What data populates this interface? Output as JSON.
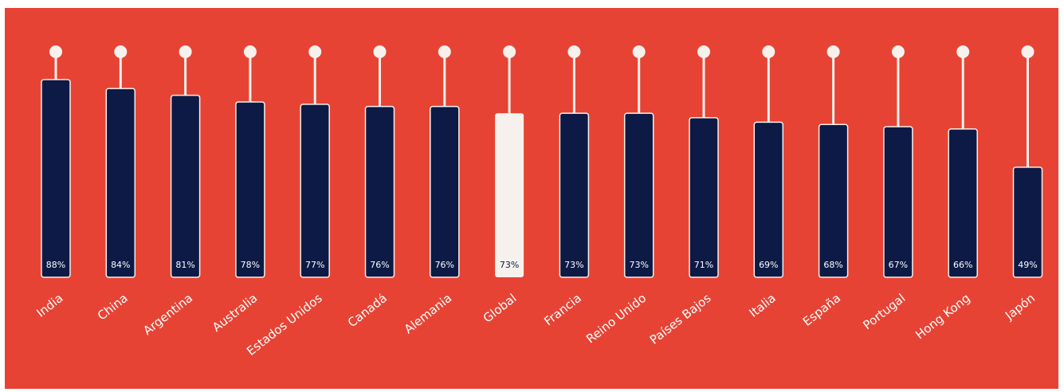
{
  "colors": {
    "background": "#e74334",
    "bar": "#0d1a45",
    "bar_highlight": "#f6f1ec",
    "stem": "#f6f1ec",
    "label_on_bar": "#ffffff",
    "label_on_highlight": "#0d1a45"
  },
  "chart_data": {
    "type": "bar",
    "title": "",
    "xlabel": "",
    "ylabel": "",
    "ylim": [
      0,
      100
    ],
    "grid": false,
    "highlight": "Global",
    "categories": [
      "India",
      "China",
      "Argentina",
      "Australia",
      "Estados Unidos",
      "Canadá",
      "Alemania",
      "Global",
      "Francia",
      "Reino Unido",
      "Países Bajos",
      "Italia",
      "España",
      "Portugal",
      "Hong Kong",
      "Japón"
    ],
    "values": [
      88,
      84,
      81,
      78,
      77,
      76,
      76,
      73,
      73,
      73,
      71,
      69,
      68,
      67,
      66,
      49
    ],
    "data_labels": [
      "88%",
      "84%",
      "81%",
      "78%",
      "77%",
      "76%",
      "76%",
      "73%",
      "73%",
      "73%",
      "71%",
      "69%",
      "68%",
      "67%",
      "66%",
      "49%"
    ]
  }
}
